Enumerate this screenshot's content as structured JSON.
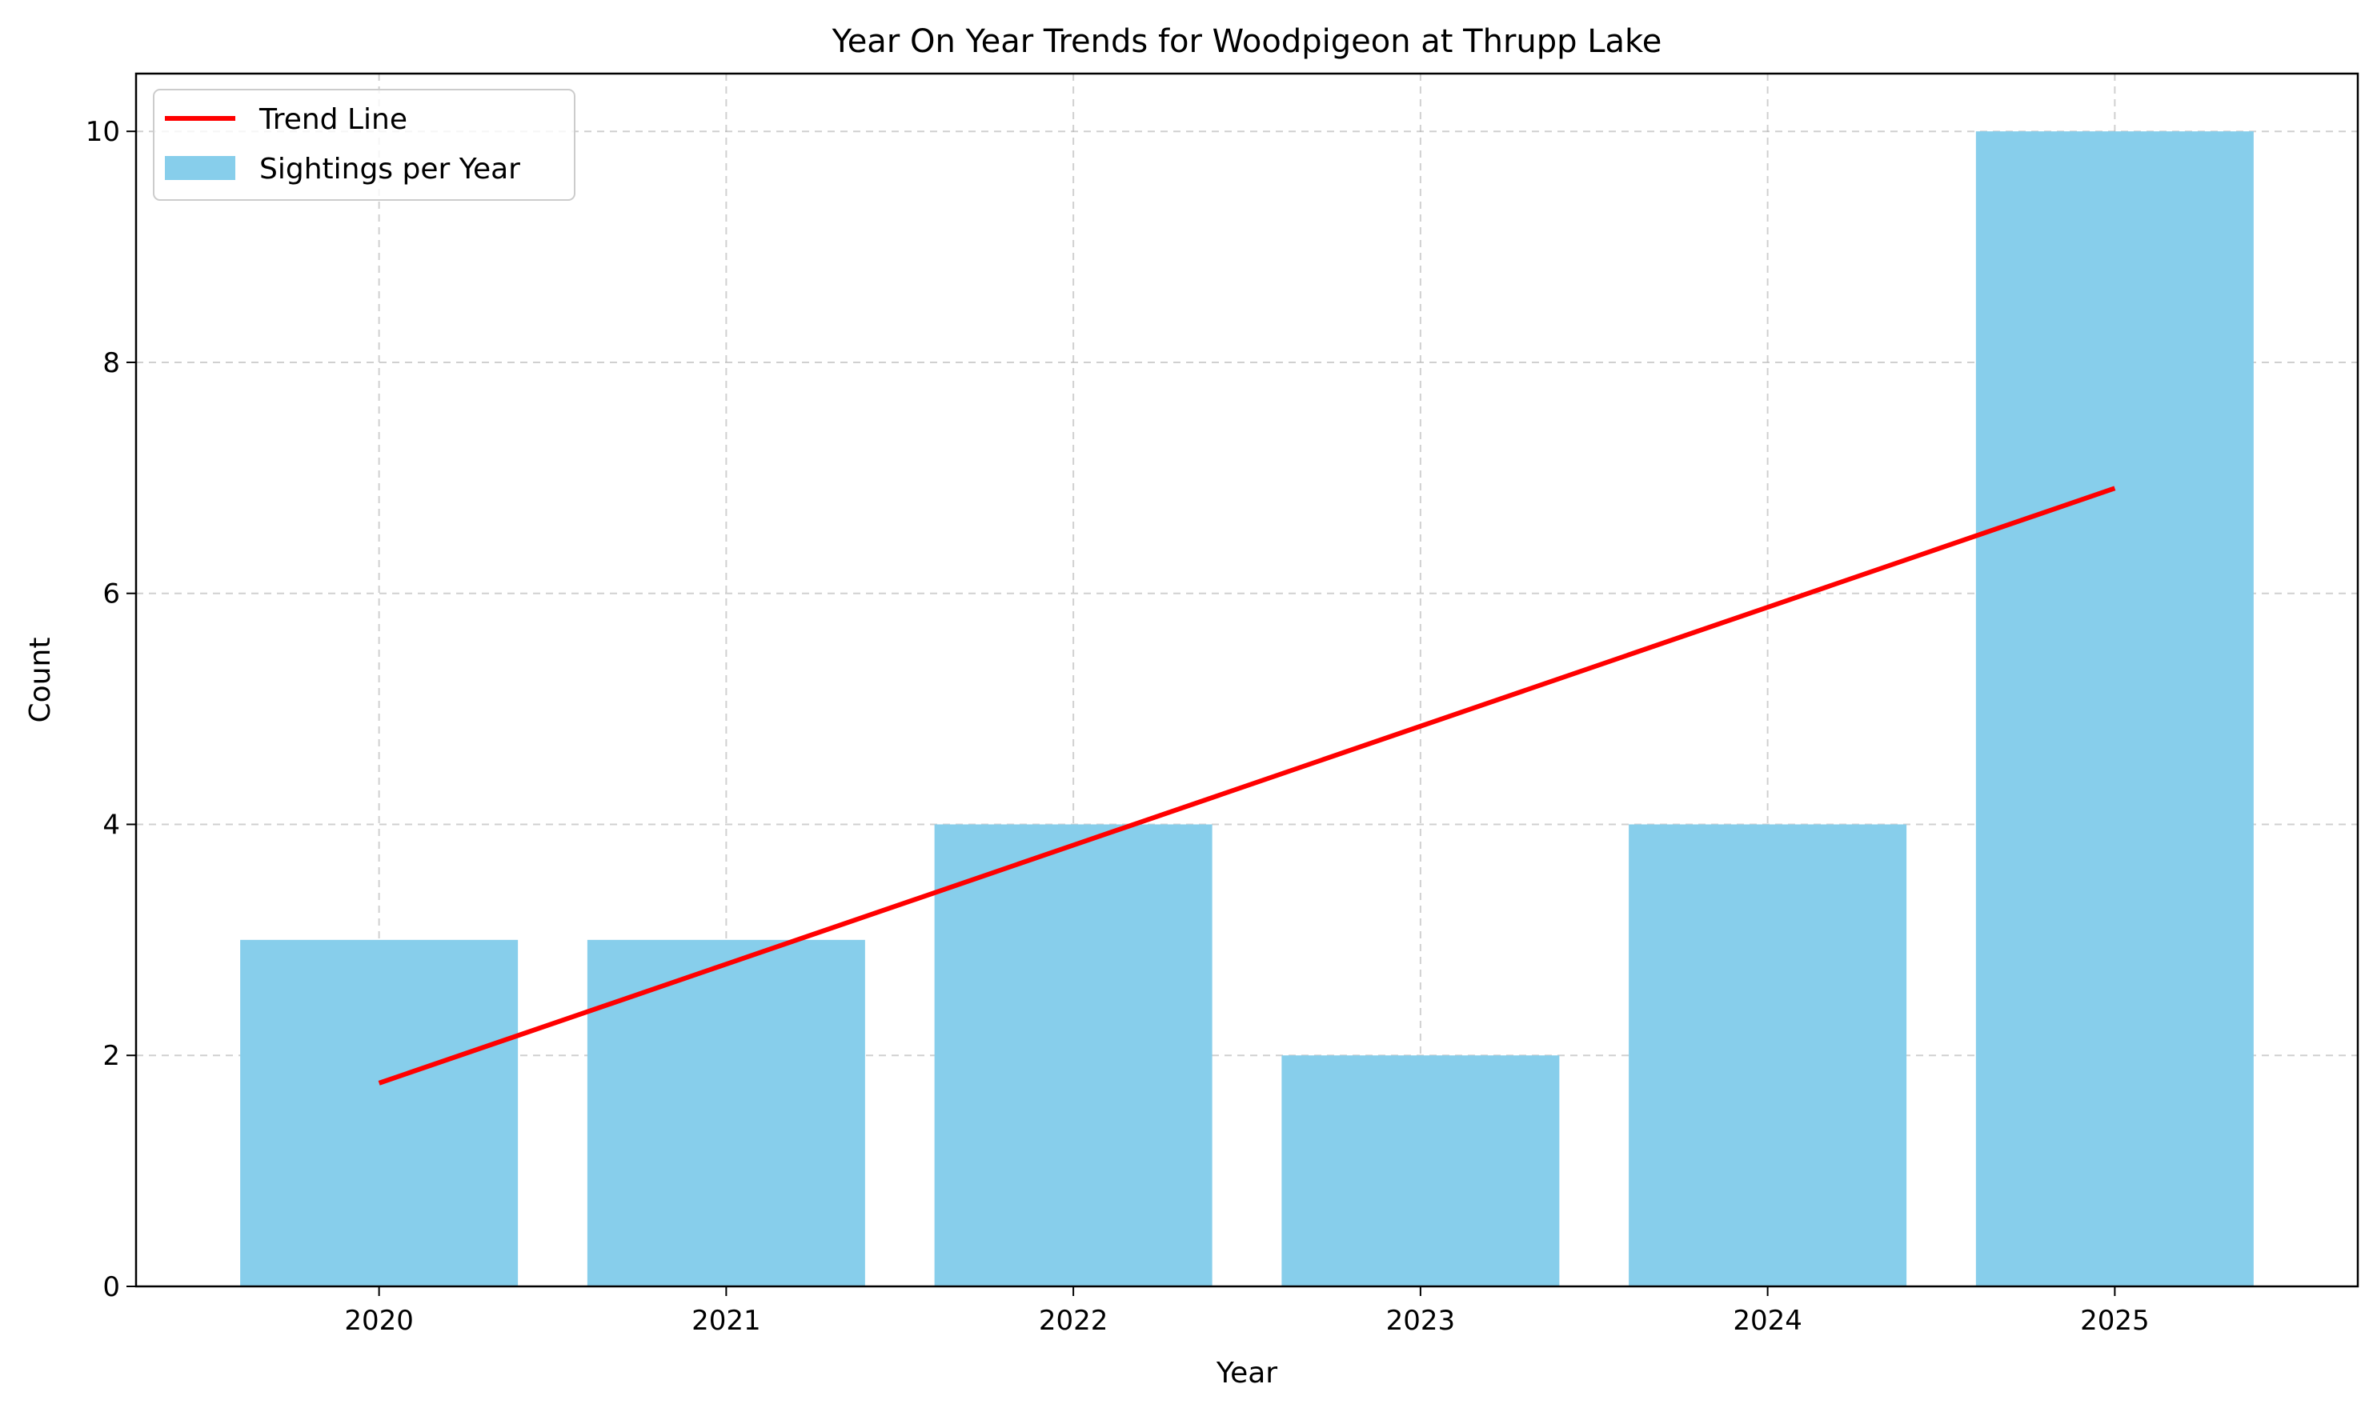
{
  "chart_data": {
    "type": "bar",
    "title": "Year On Year Trends for Woodpigeon at Thrupp Lake",
    "xlabel": "Year",
    "ylabel": "Count",
    "categories": [
      "2020",
      "2021",
      "2022",
      "2023",
      "2024",
      "2025"
    ],
    "series": [
      {
        "name": "Sightings per Year",
        "type": "bar",
        "values": [
          3,
          3,
          4,
          2,
          4,
          10
        ],
        "color": "#87ceeb"
      },
      {
        "name": "Trend Line",
        "type": "line",
        "values": [
          1.76,
          2.79,
          3.82,
          4.85,
          5.88,
          6.91
        ],
        "color": "#ff0000"
      }
    ],
    "ylim": [
      0,
      10.5
    ],
    "yticks": [
      0,
      2,
      4,
      6,
      8,
      10
    ],
    "grid": true,
    "legend_position": "top-left"
  }
}
